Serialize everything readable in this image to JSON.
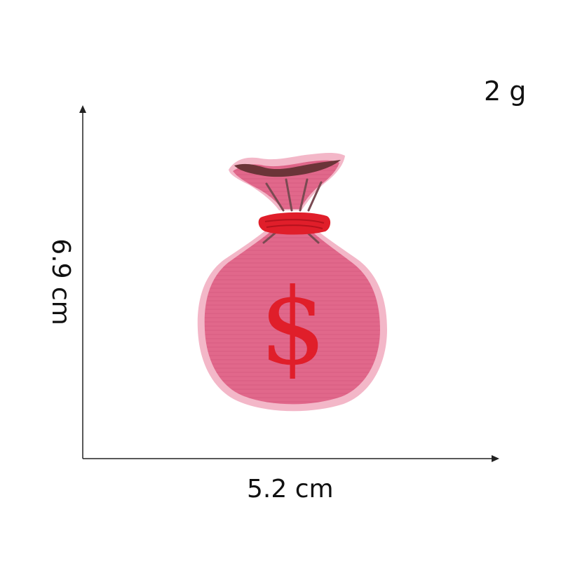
{
  "weight": "2 g",
  "dimensions": {
    "width": "5.2 cm",
    "height": "6.9 cm"
  },
  "product": {
    "icon": "money-bag-icon",
    "symbol": "$",
    "colors": {
      "bag": "#e1688b",
      "bag_outline": "#f3b7c8",
      "tie": "#e01e2a",
      "symbol": "#e01e2a",
      "opening": "#6b3438"
    }
  }
}
